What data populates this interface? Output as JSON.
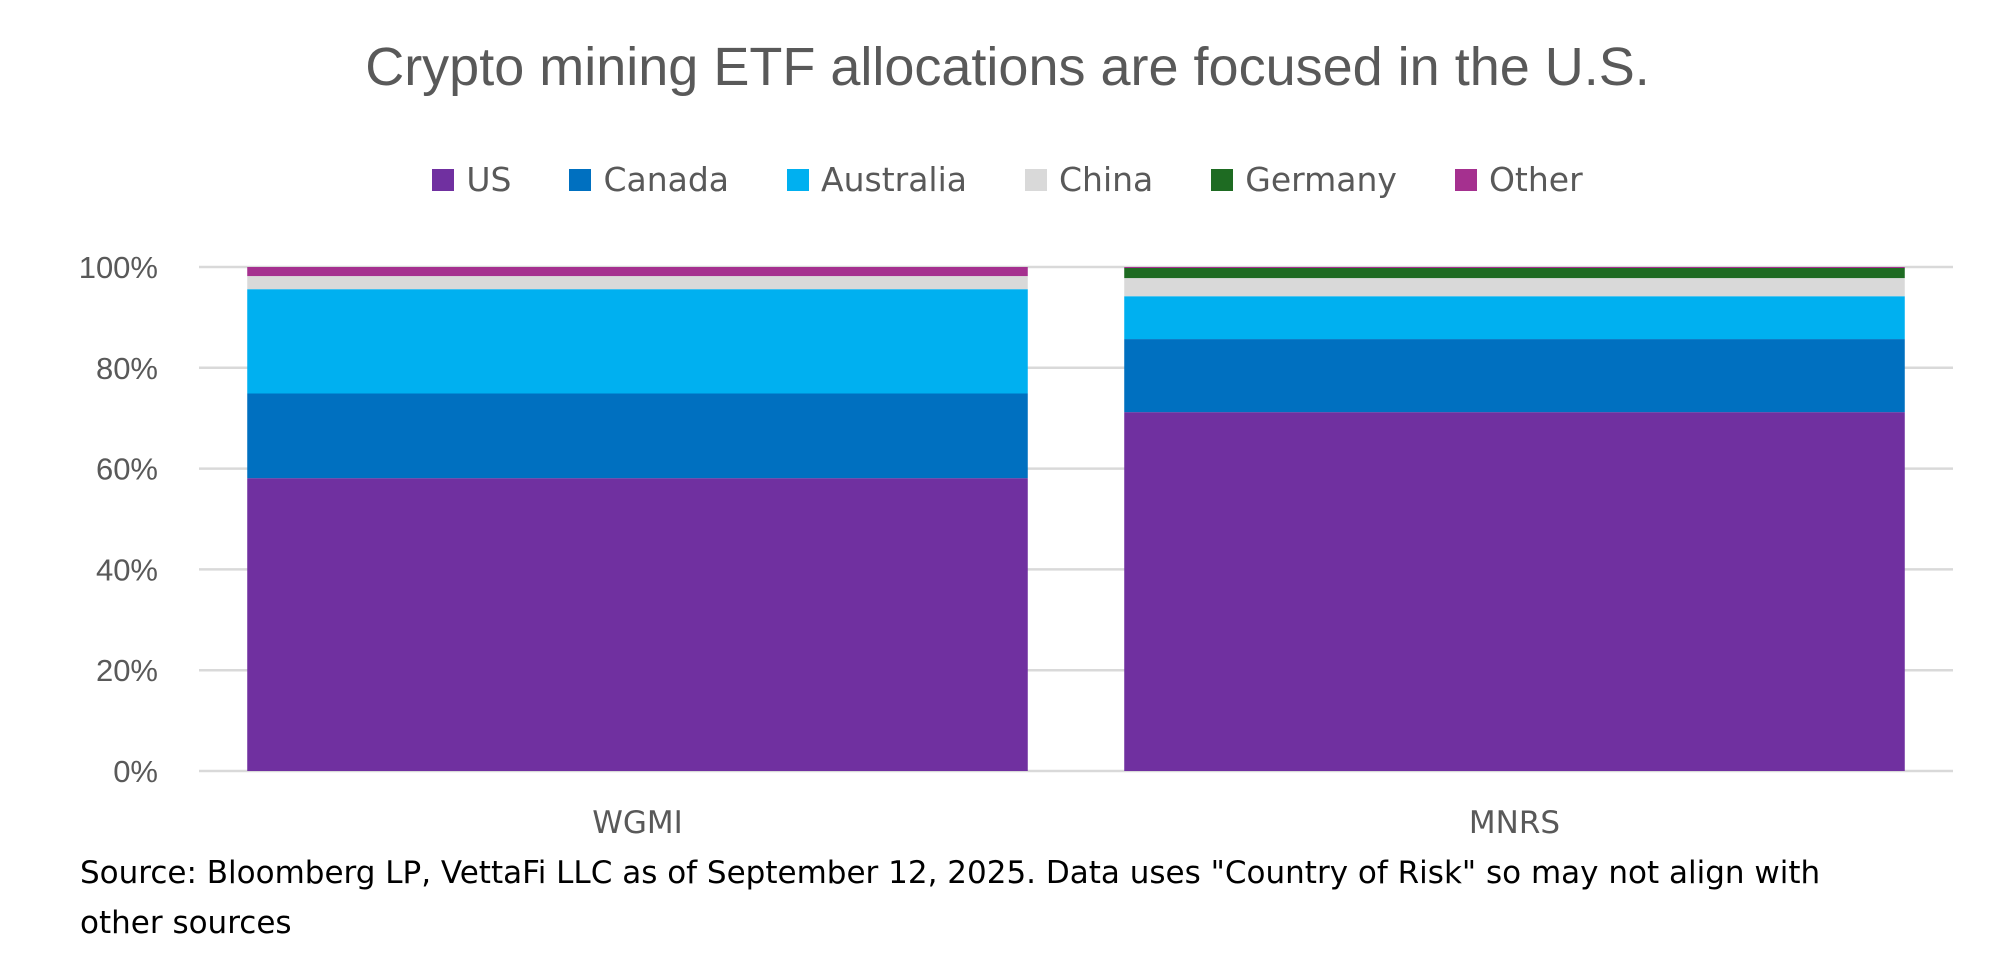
{
  "chart_data": {
    "type": "stacked-bar-100",
    "title": "Crypto mining ETF allocations are focused in the U.S.",
    "categories": [
      "WGMI",
      "MNRS"
    ],
    "series": [
      {
        "name": "US",
        "color": "#7030A0",
        "values": [
          58.1,
          71.2
        ]
      },
      {
        "name": "Canada",
        "color": "#0070C0",
        "values": [
          16.8,
          14.5
        ]
      },
      {
        "name": "Australia",
        "color": "#00B0F0",
        "values": [
          20.7,
          8.5
        ]
      },
      {
        "name": "China",
        "color": "#D9D9D9",
        "values": [
          2.6,
          3.6
        ]
      },
      {
        "name": "Germany",
        "color": "#1E6B22",
        "values": [
          0,
          2.0
        ]
      },
      {
        "name": "Other",
        "color": "#A5308F",
        "values": [
          1.8,
          0.2
        ]
      }
    ],
    "yticks": [
      "0%",
      "20%",
      "40%",
      "60%",
      "80%",
      "100%"
    ],
    "ylim": [
      0,
      100
    ],
    "grid": true,
    "legend_position": "top"
  },
  "source": "Source: Bloomberg LP, VettaFi LLC as of  September 12, 2025. Data uses \"Country of Risk\" so may not align with other sources"
}
